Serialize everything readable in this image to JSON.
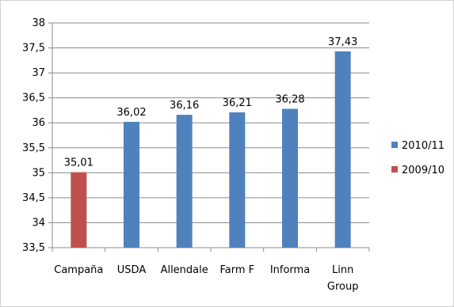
{
  "chart_data": {
    "type": "bar",
    "title": "",
    "xlabel": "",
    "ylabel": "",
    "ylim": [
      33.5,
      38
    ],
    "ytick_step": 0.5,
    "yticks": [
      "33,5",
      "34",
      "34,5",
      "35",
      "35,5",
      "36",
      "36,5",
      "37",
      "37,5",
      "38"
    ],
    "grid": true,
    "legend_position": "right",
    "categories": [
      [
        "Campaña"
      ],
      [
        "USDA"
      ],
      [
        "Allendale"
      ],
      [
        "Farm F"
      ],
      [
        "Informa"
      ],
      [
        "Linn",
        "Group"
      ]
    ],
    "series": [
      {
        "name": "2010/11",
        "color": "#4f81bd",
        "values": [
          null,
          36.02,
          36.16,
          36.21,
          36.28,
          37.43
        ],
        "labels": [
          "",
          "36,02",
          "36,16",
          "36,21",
          "36,28",
          "37,43"
        ]
      },
      {
        "name": "2009/10",
        "color": "#c0504d",
        "values": [
          35.01,
          null,
          null,
          null,
          null,
          null
        ],
        "labels": [
          "35,01",
          "",
          "",
          "",
          "",
          ""
        ]
      }
    ]
  }
}
